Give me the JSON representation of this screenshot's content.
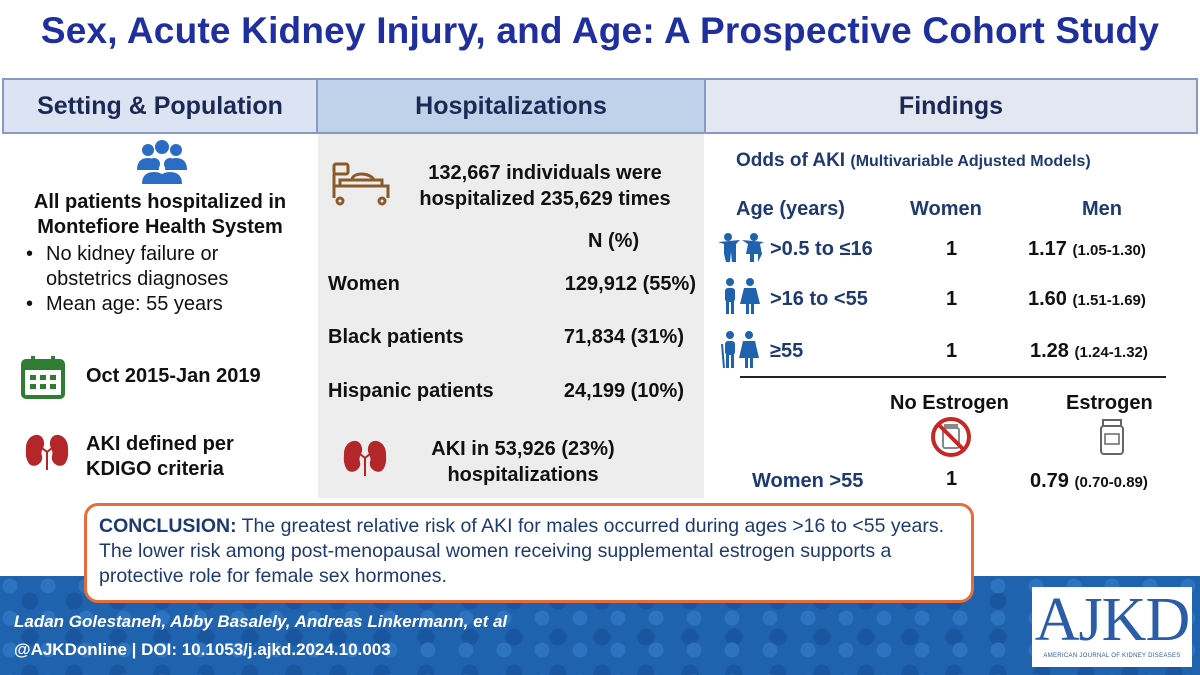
{
  "title": "Sex, Acute Kidney Injury, and Age: A Prospective Cohort Study",
  "headers": {
    "setting": "Setting & Population",
    "hospitalizations": "Hospitalizations",
    "findings": "Findings"
  },
  "setting": {
    "main": "All patients hospitalized in Montefiore Health System",
    "bullets": [
      "No kidney failure or obstetrics diagnoses",
      "Mean age: 55 years"
    ],
    "dates": "Oct 2015-Jan 2019",
    "aki_def": "AKI defined per KDIGO criteria"
  },
  "hosp": {
    "summary": "132,667 individuals were hospitalized 235,629 times",
    "n_header": "N (%)",
    "rows": [
      {
        "label": "Women",
        "value": "129,912 (55%)"
      },
      {
        "label": "Black patients",
        "value": "71,834 (31%)"
      },
      {
        "label": "Hispanic patients",
        "value": "24,199 (10%)"
      }
    ],
    "aki": "AKI in 53,926 (23%) hospitalizations"
  },
  "findings": {
    "subtitle": "Odds of AKI",
    "subtitle_small": "(Multivariable Adjusted Models)",
    "col_age": "Age (years)",
    "col_women": "Women",
    "col_men": "Men",
    "rows": [
      {
        "age": ">0.5 to ≤16",
        "women": "1",
        "men": "1.17",
        "ci": "(1.05-1.30)"
      },
      {
        "age": ">16 to <55",
        "women": "1",
        "men": "1.60",
        "ci": "(1.51-1.69)"
      },
      {
        "age": "≥55",
        "women": "1",
        "men": "1.28",
        "ci": "(1.24-1.32)"
      }
    ],
    "col_noestrogen": "No Estrogen",
    "col_estrogen": "Estrogen",
    "women55": {
      "label": "Women >55",
      "no": "1",
      "yes": "0.79",
      "ci": "(0.70-0.89)"
    }
  },
  "conclusion": {
    "label": "CONCLUSION:",
    "text": " The greatest relative risk of AKI for males occurred during ages >16 to <55 years. The lower risk among post-menopausal women receiving supplemental estrogen supports a protective role for female sex hormones."
  },
  "footer": {
    "authors": "Ladan Golestaneh, Abby Basalely, Andreas Linkermann, et al",
    "doi": "@AJKDonline | DOI: 10.1053/j.ajkd.2024.10.003",
    "logo": "AJKD",
    "logo_sub": "AMERICAN JOURNAL OF KIDNEY DISEASES"
  },
  "colors": {
    "title": "#1f2f9e",
    "accent_orange": "#e56d3b",
    "footer_blue": "#1f62ad",
    "icon_green": "#2e7d32",
    "icon_blue": "#1f62ad",
    "icon_red": "#b3262a"
  }
}
